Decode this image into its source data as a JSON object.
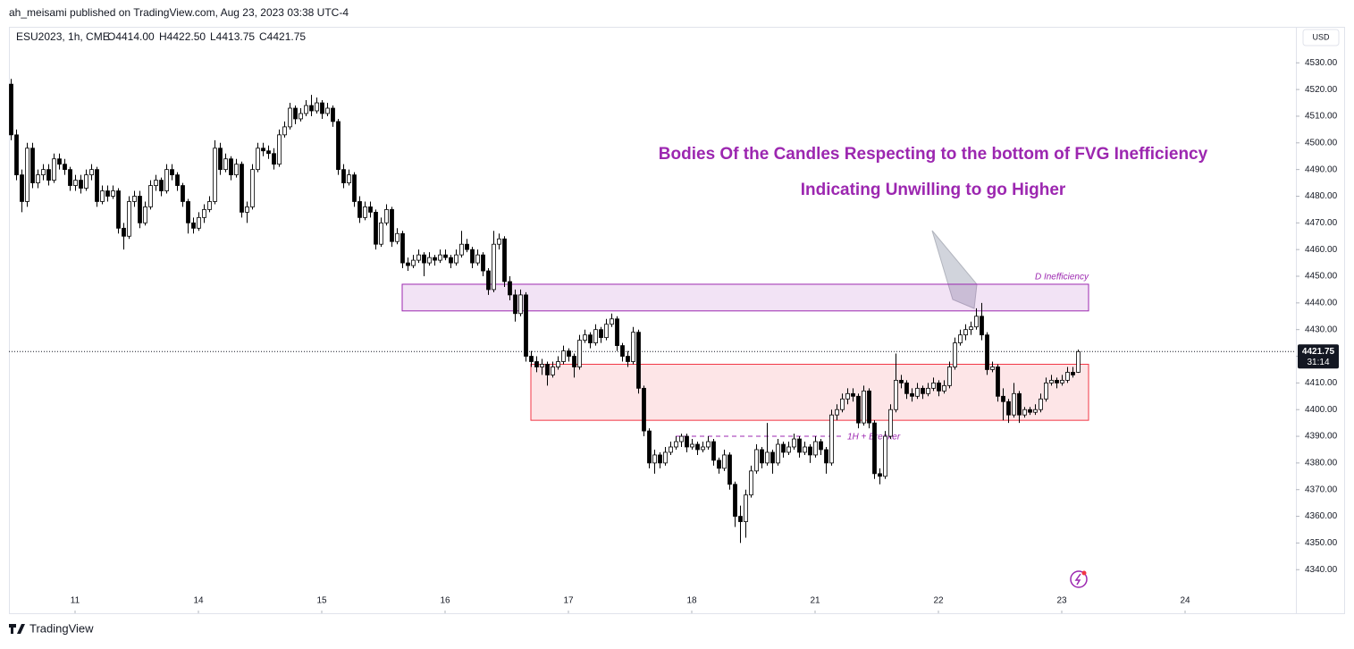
{
  "page": {
    "published": "ah_meisami published on TradingView.com, Aug 23, 2023 03:38 UTC-4",
    "symbol": "ESU2023, 1h, CME",
    "legend": [
      "O4414.00",
      "H4422.50",
      "L4413.75",
      "C4421.75"
    ],
    "currency": "USD",
    "countdown": "31:14",
    "brand": "TradingView"
  },
  "chart_data": {
    "type": "candlestick",
    "up_color": "#ffffff",
    "down_color": "#000000",
    "xlim": [
      0,
      240
    ],
    "ylim": [
      4324,
      4543.5
    ],
    "xticks": [
      {
        "value": 12,
        "label": "11"
      },
      {
        "value": 35,
        "label": "14"
      },
      {
        "value": 58,
        "label": "15"
      },
      {
        "value": 81,
        "label": "16"
      },
      {
        "value": 104,
        "label": "17"
      },
      {
        "value": 127,
        "label": "18"
      },
      {
        "value": 150,
        "label": "21"
      },
      {
        "value": 173,
        "label": "22"
      },
      {
        "value": 196,
        "label": "23"
      },
      {
        "value": 219,
        "label": "24"
      }
    ],
    "yticks": [
      {
        "value": 4340,
        "label": "4340.00"
      },
      {
        "value": 4350,
        "label": "4350.00"
      },
      {
        "value": 4360,
        "label": "4360.00"
      },
      {
        "value": 4370,
        "label": "4370.00"
      },
      {
        "value": 4380,
        "label": "4380.00"
      },
      {
        "value": 4390,
        "label": "4390.00"
      },
      {
        "value": 4400,
        "label": "4400.00"
      },
      {
        "value": 4410,
        "label": "4410.00"
      },
      {
        "value": 4420,
        "label": "4420.00"
      },
      {
        "value": 4430,
        "label": "4430.00"
      },
      {
        "value": 4440,
        "label": "4440.00"
      },
      {
        "value": 4450,
        "label": "4450.00"
      },
      {
        "value": 4460,
        "label": "4460.00"
      },
      {
        "value": 4470,
        "label": "4470.00"
      },
      {
        "value": 4480,
        "label": "4480.00"
      },
      {
        "value": 4490,
        "label": "4490.00"
      },
      {
        "value": 4500,
        "label": "4500.00"
      },
      {
        "value": 4510,
        "label": "4510.00"
      },
      {
        "value": 4520,
        "label": "4520.00"
      },
      {
        "value": 4530,
        "label": "4530.00"
      }
    ],
    "annotations": [
      "Bodies Of the Candles Respecting to the bottom of FVG Inefficiency",
      "Indicating Unwilling to go Higher"
    ],
    "zones": [
      {
        "label": "D Inefficiency",
        "top": 4447,
        "bottom": 4437,
        "start": 73,
        "end": 201,
        "color": "#9c27b0"
      },
      {
        "top": 4417,
        "bottom": 4396,
        "start": 97,
        "end": 201,
        "color": "#f23645"
      }
    ],
    "levels": [
      {
        "label": "1H + Breaker",
        "value": 4390,
        "start": 124,
        "end": 168,
        "color": "#9c27b0"
      }
    ],
    "ohlc": [
      [
        4522,
        4524,
        4501,
        4503
      ],
      [
        4503,
        4505,
        4486,
        4488
      ],
      [
        4488,
        4490,
        4474,
        4478
      ],
      [
        4478,
        4500,
        4476,
        4498
      ],
      [
        4498,
        4500,
        4483,
        4485
      ],
      [
        4485,
        4490,
        4483,
        4488
      ],
      [
        4488,
        4492,
        4486,
        4490
      ],
      [
        4490,
        4492,
        4484,
        4486
      ],
      [
        4486,
        4496,
        4485,
        4494
      ],
      [
        4494,
        4496,
        4490,
        4492
      ],
      [
        4492,
        4494,
        4488,
        4490
      ],
      [
        4490,
        4491,
        4482,
        4484
      ],
      [
        4484,
        4488,
        4482,
        4486
      ],
      [
        4486,
        4488,
        4481,
        4483
      ],
      [
        4483,
        4490,
        4482,
        4488
      ],
      [
        4488,
        4492,
        4486,
        4490
      ],
      [
        4490,
        4491,
        4476,
        4478
      ],
      [
        4478,
        4484,
        4477,
        4482
      ],
      [
        4482,
        4484,
        4478,
        4480
      ],
      [
        4480,
        4484,
        4479,
        4482
      ],
      [
        4482,
        4483,
        4466,
        4468
      ],
      [
        4468,
        4470,
        4460,
        4465
      ],
      [
        4465,
        4480,
        4464,
        4478
      ],
      [
        4478,
        4482,
        4476,
        4480
      ],
      [
        4480,
        4482,
        4468,
        4470
      ],
      [
        4470,
        4478,
        4469,
        4476
      ],
      [
        4476,
        4486,
        4475,
        4484
      ],
      [
        4484,
        4488,
        4482,
        4486
      ],
      [
        4486,
        4487,
        4480,
        4482
      ],
      [
        4482,
        4492,
        4481,
        4490
      ],
      [
        4490,
        4492,
        4486,
        4488
      ],
      [
        4488,
        4489,
        4482,
        4484
      ],
      [
        4484,
        4485,
        4476,
        4478
      ],
      [
        4478,
        4479,
        4466,
        4470
      ],
      [
        4470,
        4472,
        4466,
        4468
      ],
      [
        4468,
        4474,
        4467,
        4472
      ],
      [
        4472,
        4477,
        4470,
        4475
      ],
      [
        4475,
        4480,
        4474,
        4478
      ],
      [
        4478,
        4501,
        4477,
        4498
      ],
      [
        4498,
        4500,
        4488,
        4490
      ],
      [
        4490,
        4496,
        4489,
        4494
      ],
      [
        4494,
        4495,
        4486,
        4488
      ],
      [
        4488,
        4494,
        4487,
        4492
      ],
      [
        4492,
        4493,
        4472,
        4474
      ],
      [
        4474,
        4478,
        4470,
        4476
      ],
      [
        4476,
        4492,
        4475,
        4490
      ],
      [
        4490,
        4500,
        4489,
        4498
      ],
      [
        4498,
        4500,
        4495,
        4497
      ],
      [
        4497,
        4499,
        4494,
        4496
      ],
      [
        4496,
        4498,
        4490,
        4492
      ],
      [
        4492,
        4505,
        4491,
        4503
      ],
      [
        4503,
        4508,
        4502,
        4506
      ],
      [
        4506,
        4515,
        4505,
        4513
      ],
      [
        4513,
        4514,
        4507,
        4509
      ],
      [
        4509,
        4513,
        4508,
        4511
      ],
      [
        4511,
        4516,
        4510,
        4514
      ],
      [
        4514,
        4518,
        4510,
        4512
      ],
      [
        4512,
        4517,
        4511,
        4515
      ],
      [
        4515,
        4516,
        4509,
        4511
      ],
      [
        4511,
        4515,
        4510,
        4513
      ],
      [
        4513,
        4514,
        4506,
        4508
      ],
      [
        4508,
        4509,
        4488,
        4490
      ],
      [
        4490,
        4492,
        4483,
        4485
      ],
      [
        4485,
        4490,
        4484,
        4488
      ],
      [
        4488,
        4489,
        4476,
        4478
      ],
      [
        4478,
        4480,
        4470,
        4472
      ],
      [
        4472,
        4478,
        4471,
        4476
      ],
      [
        4476,
        4478,
        4472,
        4474
      ],
      [
        4474,
        4475,
        4460,
        4462
      ],
      [
        4462,
        4472,
        4461,
        4470
      ],
      [
        4470,
        4477,
        4469,
        4475
      ],
      [
        4475,
        4476,
        4461,
        4463
      ],
      [
        4463,
        4468,
        4462,
        4466
      ],
      [
        4466,
        4467,
        4453,
        4455
      ],
      [
        4455,
        4457,
        4452,
        4454
      ],
      [
        4454,
        4458,
        4453,
        4456
      ],
      [
        4456,
        4460,
        4455,
        4458
      ],
      [
        4458,
        4459,
        4450,
        4455
      ],
      [
        4455,
        4459,
        4454,
        4457
      ],
      [
        4457,
        4458,
        4454,
        4456
      ],
      [
        4456,
        4460,
        4455,
        4458
      ],
      [
        4458,
        4460,
        4456,
        4457
      ],
      [
        4457,
        4458,
        4453,
        4455
      ],
      [
        4455,
        4460,
        4454,
        4458
      ],
      [
        4458,
        4467,
        4457,
        4462
      ],
      [
        4462,
        4464,
        4459,
        4460
      ],
      [
        4460,
        4461,
        4453,
        4455
      ],
      [
        4455,
        4460,
        4454,
        4458
      ],
      [
        4458,
        4459,
        4450,
        4452
      ],
      [
        4452,
        4453,
        4443,
        4445
      ],
      [
        4445,
        4467,
        4444,
        4462
      ],
      [
        4462,
        4466,
        4460,
        4464
      ],
      [
        4464,
        4465,
        4446,
        4448
      ],
      [
        4448,
        4450,
        4441,
        4443
      ],
      [
        4443,
        4445,
        4433,
        4436
      ],
      [
        4436,
        4445,
        4435,
        4443
      ],
      [
        4443,
        4444,
        4418,
        4420
      ],
      [
        4420,
        4422,
        4416,
        4418
      ],
      [
        4418,
        4420,
        4414,
        4416
      ],
      [
        4416,
        4419,
        4413,
        4417
      ],
      [
        4417,
        4418,
        4409,
        4413
      ],
      [
        4413,
        4418,
        4412,
        4416
      ],
      [
        4416,
        4420,
        4415,
        4418
      ],
      [
        4418,
        4424,
        4417,
        4422
      ],
      [
        4422,
        4423,
        4418,
        4420
      ],
      [
        4420,
        4421,
        4412,
        4416
      ],
      [
        4416,
        4428,
        4415,
        4426
      ],
      [
        4426,
        4430,
        4425,
        4428
      ],
      [
        4428,
        4429,
        4423,
        4425
      ],
      [
        4425,
        4432,
        4424,
        4430
      ],
      [
        4430,
        4431,
        4425,
        4427
      ],
      [
        4427,
        4434,
        4426,
        4432
      ],
      [
        4432,
        4436,
        4431,
        4434
      ],
      [
        4434,
        4435,
        4422,
        4424
      ],
      [
        4424,
        4425,
        4418,
        4420
      ],
      [
        4420,
        4422,
        4416,
        4418
      ],
      [
        4418,
        4431,
        4417,
        4429
      ],
      [
        4429,
        4430,
        4406,
        4408
      ],
      [
        4408,
        4409,
        4390,
        4392
      ],
      [
        4392,
        4393,
        4378,
        4380
      ],
      [
        4380,
        4385,
        4376,
        4383
      ],
      [
        4383,
        4384,
        4378,
        4380
      ],
      [
        4380,
        4386,
        4379,
        4384
      ],
      [
        4384,
        4388,
        4383,
        4386
      ],
      [
        4386,
        4390,
        4385,
        4388
      ],
      [
        4388,
        4391,
        4386,
        4390
      ],
      [
        4390,
        4391,
        4384,
        4386
      ],
      [
        4386,
        4389,
        4385,
        4387
      ],
      [
        4387,
        4388,
        4383,
        4385
      ],
      [
        4385,
        4388,
        4384,
        4386
      ],
      [
        4386,
        4390,
        4385,
        4388
      ],
      [
        4388,
        4389,
        4379,
        4381
      ],
      [
        4381,
        4382,
        4376,
        4378
      ],
      [
        4378,
        4385,
        4377,
        4383
      ],
      [
        4383,
        4384,
        4370,
        4372
      ],
      [
        4372,
        4373,
        4356,
        4360
      ],
      [
        4360,
        4364,
        4350,
        4358
      ],
      [
        4358,
        4370,
        4352,
        4368
      ],
      [
        4368,
        4379,
        4367,
        4377
      ],
      [
        4377,
        4387,
        4376,
        4385
      ],
      [
        4385,
        4386,
        4378,
        4380
      ],
      [
        4380,
        4395,
        4379,
        4384
      ],
      [
        4384,
        4385,
        4376,
        4380
      ],
      [
        4380,
        4389,
        4379,
        4387
      ],
      [
        4387,
        4388,
        4382,
        4384
      ],
      [
        4384,
        4388,
        4383,
        4386
      ],
      [
        4386,
        4391,
        4385,
        4389
      ],
      [
        4389,
        4390,
        4382,
        4384
      ],
      [
        4384,
        4388,
        4383,
        4386
      ],
      [
        4386,
        4387,
        4380,
        4383
      ],
      [
        4383,
        4390,
        4382,
        4388
      ],
      [
        4388,
        4389,
        4383,
        4385
      ],
      [
        4385,
        4386,
        4376,
        4380
      ],
      [
        4380,
        4400,
        4379,
        4398
      ],
      [
        4398,
        4402,
        4396,
        4400
      ],
      [
        4400,
        4406,
        4399,
        4404
      ],
      [
        4404,
        4408,
        4402,
        4406
      ],
      [
        4406,
        4408,
        4403,
        4405
      ],
      [
        4405,
        4406,
        4393,
        4395
      ],
      [
        4395,
        4409,
        4394,
        4407
      ],
      [
        4407,
        4408,
        4393,
        4395
      ],
      [
        4395,
        4396,
        4374,
        4376
      ],
      [
        4376,
        4378,
        4372,
        4375
      ],
      [
        4375,
        4392,
        4374,
        4390
      ],
      [
        4390,
        4402,
        4389,
        4400
      ],
      [
        4400,
        4421,
        4399,
        4411
      ],
      [
        4411,
        4413,
        4408,
        4410
      ],
      [
        4410,
        4411,
        4404,
        4406
      ],
      [
        4406,
        4408,
        4403,
        4405
      ],
      [
        4405,
        4410,
        4404,
        4408
      ],
      [
        4408,
        4409,
        4404,
        4406
      ],
      [
        4406,
        4410,
        4405,
        4408
      ],
      [
        4408,
        4412,
        4407,
        4410
      ],
      [
        4410,
        4411,
        4405,
        4407
      ],
      [
        4407,
        4411,
        4406,
        4409
      ],
      [
        4409,
        4418,
        4408,
        4416
      ],
      [
        4416,
        4427,
        4415,
        4425
      ],
      [
        4425,
        4430,
        4424,
        4428
      ],
      [
        4428,
        4432,
        4426,
        4430
      ],
      [
        4430,
        4433,
        4428,
        4431
      ],
      [
        4431,
        4438,
        4430,
        4435
      ],
      [
        4435,
        4440,
        4426,
        4428
      ],
      [
        4428,
        4429,
        4413,
        4415
      ],
      [
        4415,
        4418,
        4414,
        4416
      ],
      [
        4416,
        4417,
        4403,
        4405
      ],
      [
        4405,
        4408,
        4396,
        4403
      ],
      [
        4403,
        4404,
        4395,
        4398
      ],
      [
        4398,
        4410,
        4397,
        4406
      ],
      [
        4406,
        4407,
        4395,
        4398
      ],
      [
        4398,
        4401,
        4397,
        4400
      ],
      [
        4400,
        4401,
        4398,
        4399
      ],
      [
        4399,
        4402,
        4398,
        4400
      ],
      [
        4400,
        4406,
        4399,
        4404
      ],
      [
        4404,
        4412,
        4403,
        4410
      ],
      [
        4410,
        4413,
        4409,
        4411
      ],
      [
        4411,
        4412,
        4408,
        4410
      ],
      [
        4410,
        4413,
        4409,
        4411
      ],
      [
        4411,
        4416,
        4410,
        4414
      ],
      [
        4414,
        4416,
        4412,
        4413
      ],
      [
        4414,
        4422.5,
        4413.75,
        4421.75
      ]
    ]
  }
}
